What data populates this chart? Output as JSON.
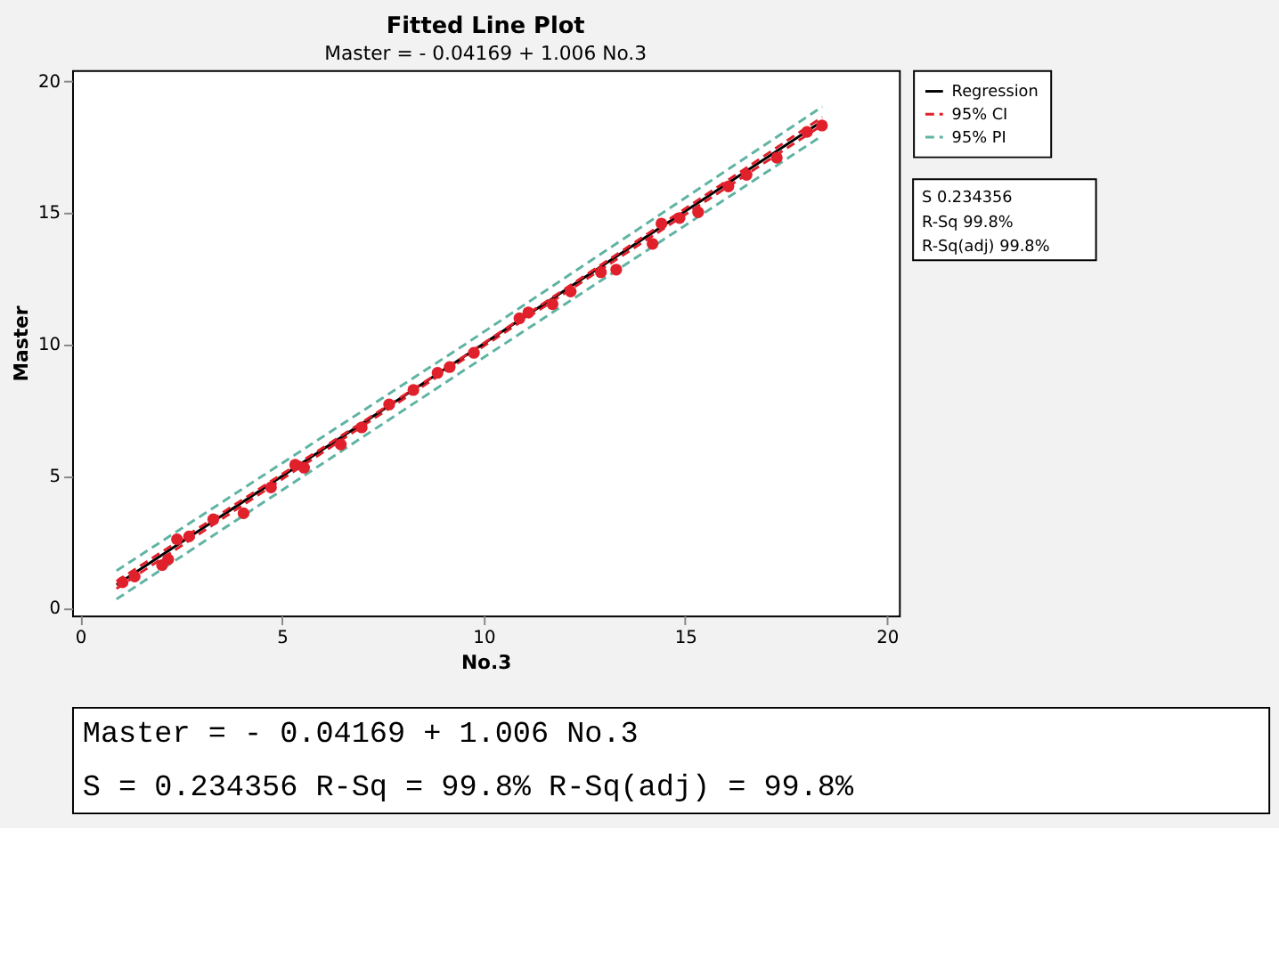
{
  "chart_data": {
    "type": "scatter",
    "title": "Fitted Line Plot",
    "subtitle": "Master = - 0.04169 + 1.006 No.3",
    "xlabel": "No.3",
    "ylabel": "Master",
    "xlim": [
      -0.2,
      20.3
    ],
    "ylim": [
      -0.3,
      20.4
    ],
    "xticks": [
      0,
      5,
      10,
      15,
      20
    ],
    "yticks": [
      0,
      5,
      10,
      15,
      20
    ],
    "grid": false,
    "legend": "right",
    "series": [
      {
        "marker": "circle",
        "color": "#e0202a",
        "x": [
          1.05,
          1.35,
          2.03,
          2.18,
          2.4,
          2.7,
          3.3,
          4.05,
          4.73,
          5.33,
          5.55,
          6.46,
          6.98,
          7.66,
          8.26,
          8.86,
          9.16,
          9.76,
          10.89,
          11.11,
          11.71,
          12.16,
          12.91,
          13.29,
          14.19,
          14.41,
          14.86,
          15.32,
          16.07,
          16.52,
          17.27,
          18.02,
          18.39
        ],
        "values": [
          0.96,
          1.18,
          1.61,
          1.83,
          2.59,
          2.7,
          3.35,
          3.58,
          4.56,
          5.42,
          5.31,
          6.19,
          6.84,
          7.71,
          8.26,
          8.91,
          9.13,
          9.67,
          10.98,
          11.2,
          11.52,
          12.0,
          12.73,
          12.83,
          13.81,
          14.58,
          14.79,
          15.01,
          15.99,
          16.43,
          17.08,
          18.06,
          18.3
        ]
      },
      {
        "type": "line",
        "name": "Regression",
        "color": "#000000",
        "line_style": "solid",
        "x": [
          0.9,
          18.4
        ],
        "values": [
          0.86,
          18.47
        ]
      },
      {
        "type": "line",
        "name": "95% CI",
        "color": "#e0202a",
        "line_style": "dashed",
        "x": [
          0.9,
          9.5,
          18.4
        ],
        "values": [
          1.0,
          9.52,
          18.62
        ]
      },
      {
        "type": "line",
        "color": "#e0202a",
        "line_style": "dashed",
        "x": [
          0.9,
          9.5,
          18.4
        ],
        "values": [
          0.72,
          9.42,
          18.32
        ]
      },
      {
        "type": "line",
        "name": "95% PI",
        "color": "#5fb3a3",
        "line_style": "dashed",
        "x": [
          0.9,
          9.5,
          18.4
        ],
        "values": [
          1.4,
          9.95,
          19.02
        ]
      },
      {
        "type": "line",
        "color": "#5fb3a3",
        "line_style": "dashed",
        "x": [
          0.9,
          9.5,
          18.4
        ],
        "values": [
          0.32,
          8.99,
          17.92
        ]
      }
    ],
    "annotations": [
      "S 0.234356",
      "R-Sq 99.8%",
      "R-Sq(adj) 99.8%",
      "Master = - 0.04169 + 1.006 No.3",
      "S = 0.234356    R-Sq = 99.8%    R-Sq(adj) = 99.8%"
    ]
  }
}
